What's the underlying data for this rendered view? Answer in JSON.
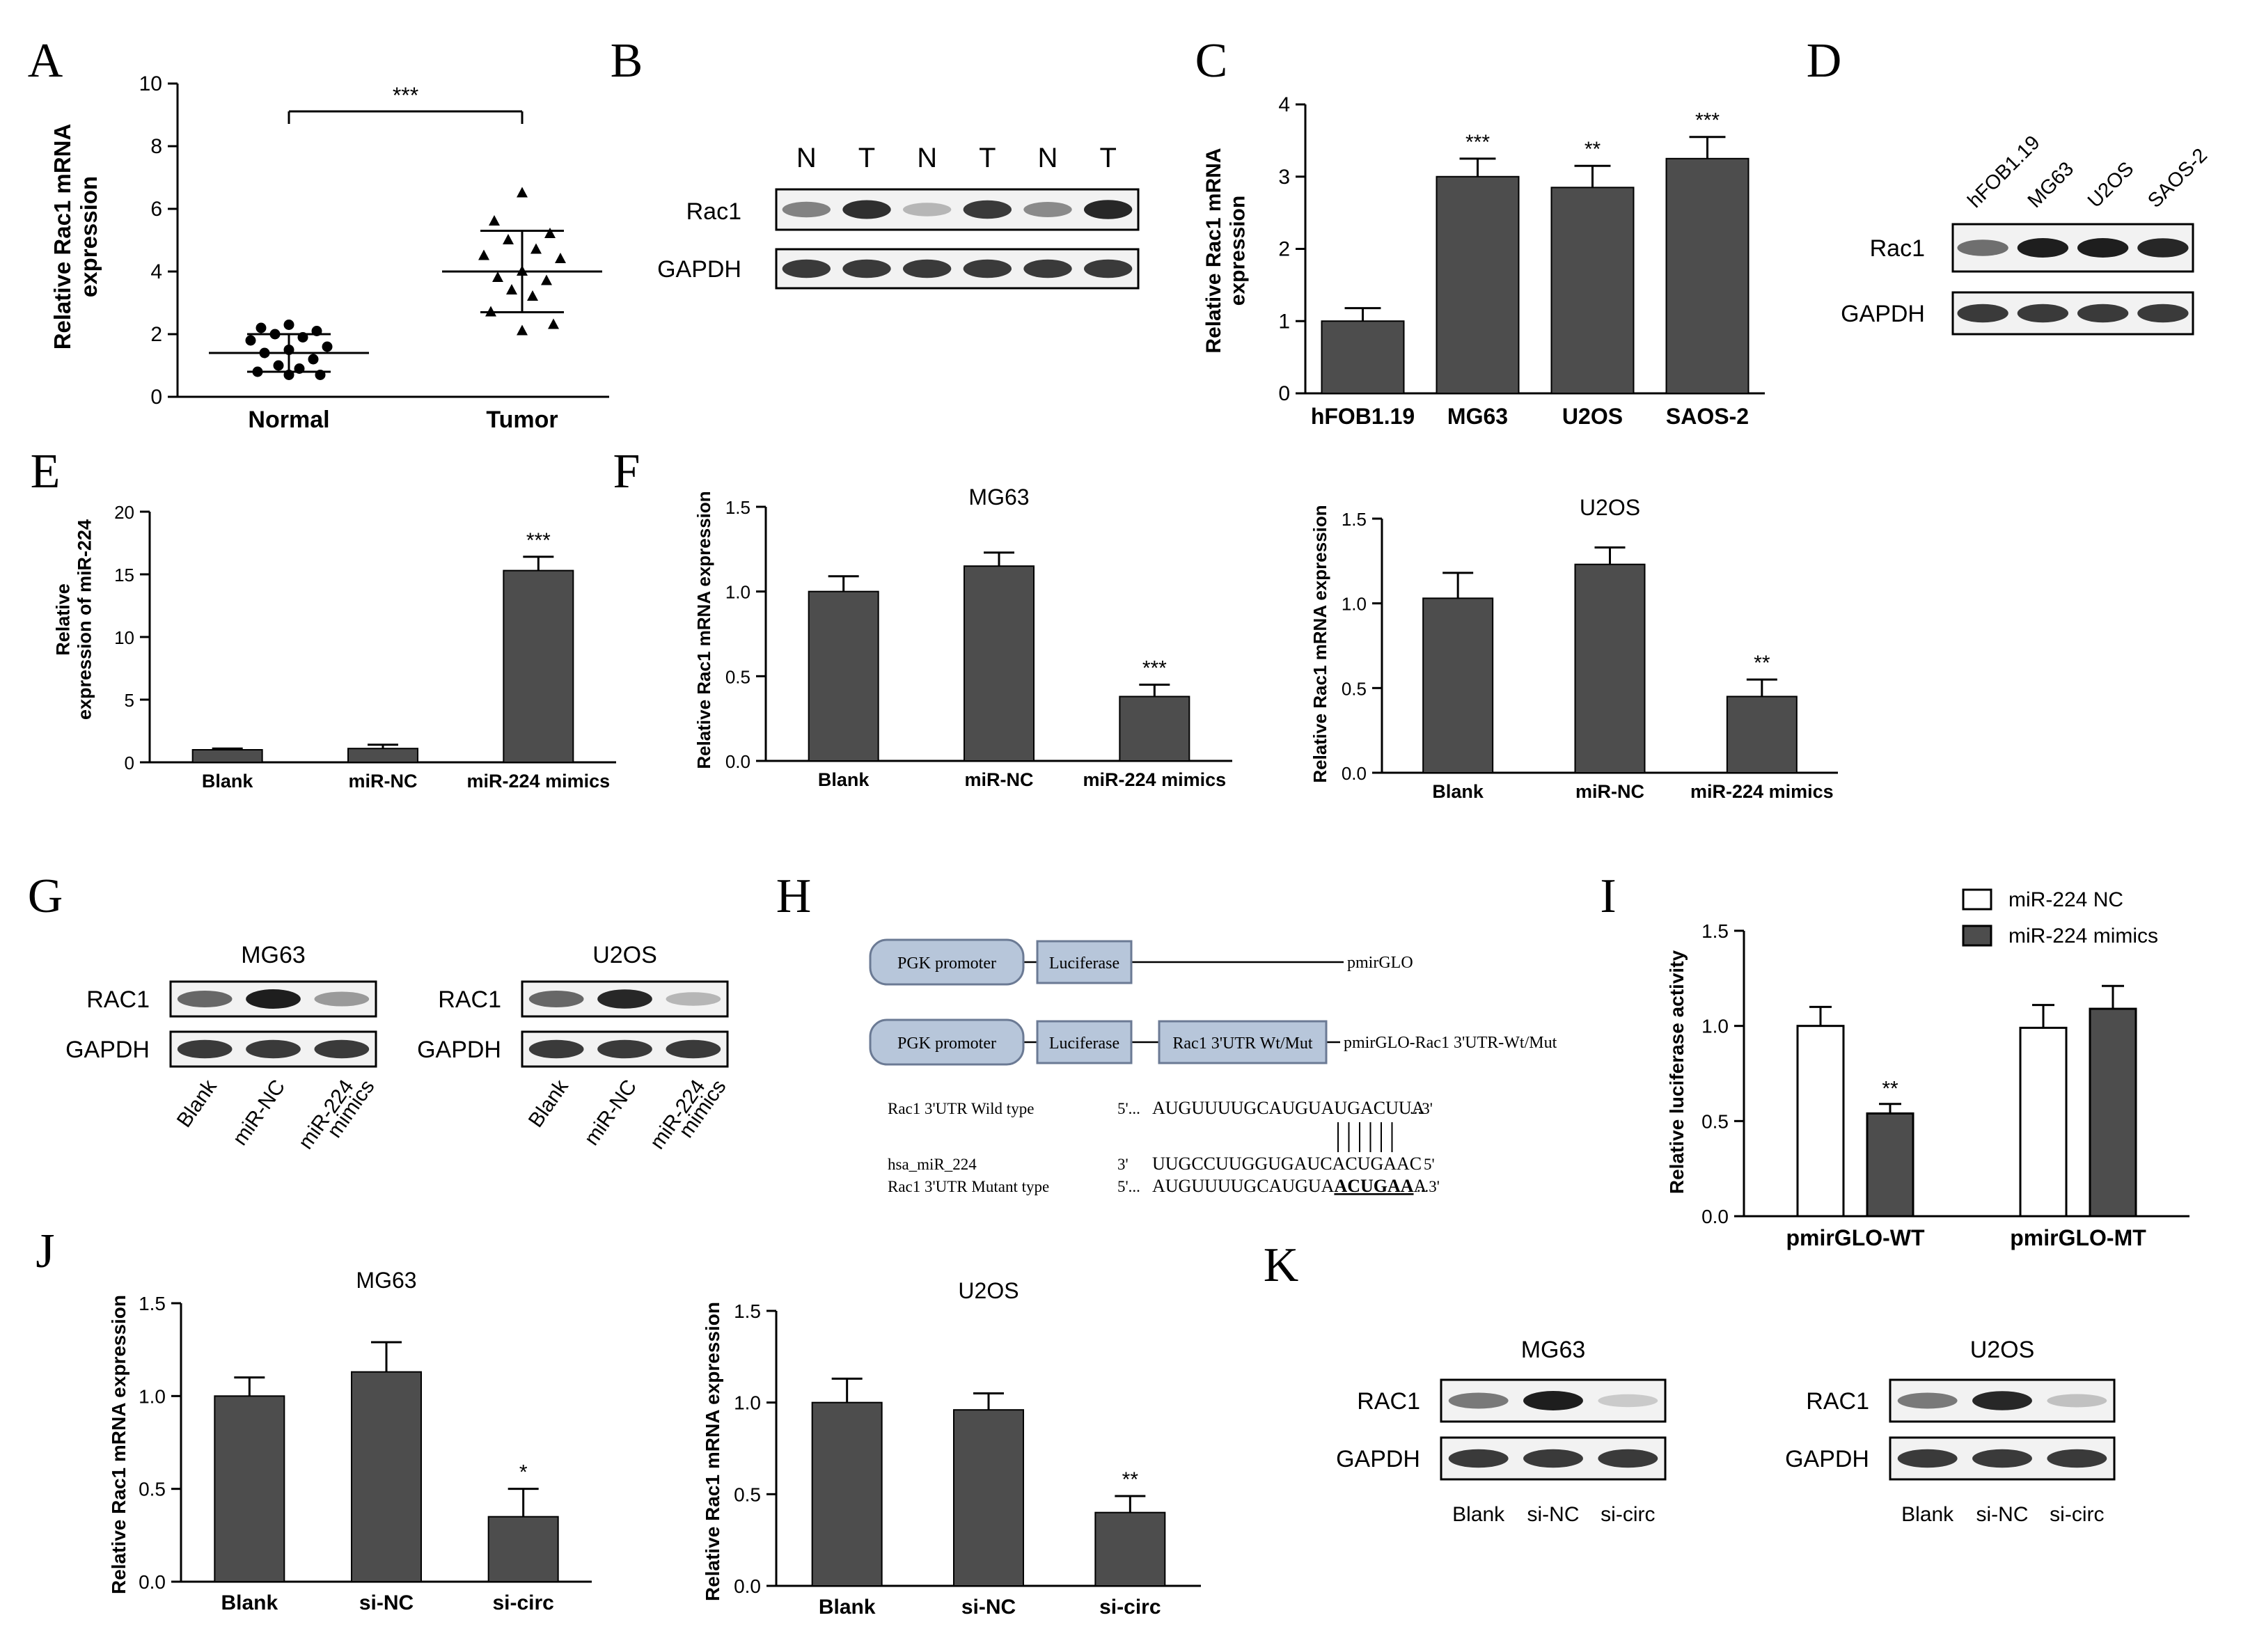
{
  "colors": {
    "bar": "#4d4d4d",
    "axis": "#000000",
    "band": "#1e1e1e",
    "blot_bg": "#f2f2f2",
    "construct_fill": "#b7c6da",
    "construct_stroke": "#6b7a94"
  },
  "chart_data": [
    {
      "panel": "A",
      "type": "scatter",
      "categories": [
        "Normal",
        "Tumor"
      ],
      "ylabel": "Relative Rac1 mRNA expression",
      "ylim": [
        0,
        10
      ],
      "yticks": [
        0,
        2,
        4,
        6,
        8,
        10
      ],
      "series": [
        {
          "points": [
            2.3,
            2.2,
            2.1,
            2.0,
            1.9,
            1.8,
            1.6,
            1.5,
            1.4,
            1.2,
            1.0,
            0.9,
            0.8,
            0.7,
            0.7
          ],
          "mean": 1.4,
          "sd": 0.6,
          "marker": "circle"
        },
        {
          "points": [
            6.5,
            5.6,
            5.2,
            5.0,
            4.7,
            4.5,
            4.4,
            4.0,
            3.8,
            3.7,
            3.4,
            3.2,
            2.7,
            2.3,
            2.1
          ],
          "mean": 4.0,
          "sd": 1.3,
          "marker": "triangle"
        }
      ],
      "annotation": "***"
    },
    {
      "panel": "C",
      "type": "bar",
      "categories": [
        "hFOB1.19",
        "MG63",
        "U2OS",
        "SAOS-2"
      ],
      "values": [
        1.0,
        3.0,
        2.85,
        3.25
      ],
      "errors": [
        0.18,
        0.25,
        0.3,
        0.3
      ],
      "stars": [
        "",
        "***",
        "**",
        "***"
      ],
      "ylabel": "Relative Rac1 mRNA expression",
      "ylim": [
        0,
        4
      ],
      "yticks": [
        0,
        1,
        2,
        3,
        4
      ]
    },
    {
      "panel": "E",
      "type": "bar",
      "categories": [
        "Blank",
        "miR-NC",
        "miR-224 mimics"
      ],
      "values": [
        1.0,
        1.1,
        15.3
      ],
      "errors": [
        0.1,
        0.3,
        1.1
      ],
      "stars": [
        "",
        "",
        "***"
      ],
      "ylabel": "Relative expression of miR-224",
      "ylim": [
        0,
        20
      ],
      "yticks": [
        0,
        5,
        10,
        15,
        20
      ]
    },
    {
      "panel": "F1",
      "type": "bar",
      "title": "MG63",
      "categories": [
        "Blank",
        "miR-NC",
        "miR-224 mimics"
      ],
      "values": [
        1.0,
        1.15,
        0.38
      ],
      "errors": [
        0.09,
        0.08,
        0.07
      ],
      "stars": [
        "",
        "",
        "***"
      ],
      "ylabel": "Relative Rac1 mRNA expression",
      "ylim": [
        0,
        1.5
      ],
      "yticks": [
        0.0,
        0.5,
        1.0,
        1.5
      ]
    },
    {
      "panel": "F2",
      "type": "bar",
      "title": "U2OS",
      "categories": [
        "Blank",
        "miR-NC",
        "miR-224 mimics"
      ],
      "values": [
        1.03,
        1.23,
        0.45
      ],
      "errors": [
        0.15,
        0.1,
        0.1
      ],
      "stars": [
        "",
        "",
        "**"
      ],
      "ylabel": "Relative Rac1 mRNA expression",
      "ylim": [
        0,
        1.5
      ],
      "yticks": [
        0.0,
        0.5,
        1.0,
        1.5
      ]
    },
    {
      "panel": "I",
      "type": "bar",
      "categories": [
        "pmirGLO-WT",
        "pmirGLO-MT"
      ],
      "series": [
        {
          "name": "miR-224 NC",
          "values": [
            1.0,
            0.99
          ],
          "errors": [
            0.1,
            0.12
          ],
          "fill": "#ffffff"
        },
        {
          "name": "miR-224 mimics",
          "values": [
            0.54,
            1.09
          ],
          "errors": [
            0.05,
            0.12
          ],
          "fill": "#4d4d4d"
        }
      ],
      "stars": [
        "**",
        ""
      ],
      "ylabel": "Relative luciferase activity",
      "ylim": [
        0,
        1.5
      ],
      "yticks": [
        0.0,
        0.5,
        1.0,
        1.5
      ],
      "legend": "top-right"
    },
    {
      "panel": "J1",
      "type": "bar",
      "title": "MG63",
      "categories": [
        "Blank",
        "si-NC",
        "si-circ"
      ],
      "values": [
        1.0,
        1.13,
        0.35
      ],
      "errors": [
        0.1,
        0.16,
        0.15
      ],
      "stars": [
        "",
        "",
        "*"
      ],
      "ylabel": "Relative Rac1 mRNA expression",
      "ylim": [
        0,
        1.5
      ],
      "yticks": [
        0.0,
        0.5,
        1.0,
        1.5
      ]
    },
    {
      "panel": "J2",
      "type": "bar",
      "title": "U2OS",
      "categories": [
        "Blank",
        "si-NC",
        "si-circ"
      ],
      "values": [
        1.0,
        0.96,
        0.4
      ],
      "errors": [
        0.13,
        0.09,
        0.09
      ],
      "stars": [
        "",
        "",
        "**"
      ],
      "ylabel": "Relative Rac1 mRNA expression",
      "ylim": [
        0,
        1.5
      ],
      "yticks": [
        0.0,
        0.5,
        1.0,
        1.5
      ]
    }
  ],
  "panels": {
    "labels": [
      "A",
      "B",
      "C",
      "D",
      "E",
      "F",
      "G",
      "H",
      "I",
      "J",
      "K"
    ],
    "B": {
      "lanes": [
        "N",
        "T",
        "N",
        "T",
        "N",
        "T"
      ],
      "rows": [
        "Rac1",
        "GAPDH"
      ],
      "rac1": [
        0.45,
        0.9,
        0.15,
        0.85,
        0.4,
        0.95
      ],
      "gapdh": [
        0.85,
        0.85,
        0.85,
        0.85,
        0.85,
        0.85
      ]
    },
    "D": {
      "lanes": [
        "hFOB1.19",
        "MG63",
        "U2OS",
        "SAOS-2"
      ],
      "rows": [
        "Rac1",
        "GAPDH"
      ],
      "rac1": [
        0.55,
        1.0,
        1.0,
        0.95
      ],
      "gapdh": [
        0.85,
        0.85,
        0.85,
        0.85
      ]
    },
    "G": {
      "blots": [
        {
          "title": "MG63",
          "rac1": [
            0.6,
            1.0,
            0.3
          ],
          "gapdh": [
            0.85,
            0.85,
            0.85
          ]
        },
        {
          "title": "U2OS",
          "rac1": [
            0.6,
            0.95,
            0.15
          ],
          "gapdh": [
            0.85,
            0.85,
            0.85
          ]
        }
      ],
      "rows": [
        "RAC1",
        "GAPDH"
      ],
      "lanes": [
        "Blank",
        "miR-NC",
        [
          "miR-224",
          "mimics"
        ]
      ]
    },
    "H": {
      "row1": {
        "promoter": "PGK promoter",
        "luc": "Luciferase",
        "label": "pmirGLO"
      },
      "row2": {
        "promoter": "PGK promoter",
        "luc": "Luciferase",
        "utr": "Rac1 3'UTR Wt/Mut",
        "label": "pmirGLO-Rac1 3'UTR-Wt/Mut"
      },
      "seq": [
        {
          "name": "Rac1 3'UTR Wild type",
          "end5": "5'...",
          "seq": "AUGUUUUGCAUGUAUGACUUA",
          "end3": "...3'"
        },
        {
          "name": "hsa_miR_224",
          "end5": "3'",
          "seq": "UUGCCUUGGUGAUCACUGAAC",
          "end3": "5'"
        },
        {
          "name": "Rac1 3'UTR Mutant type",
          "end5": "5'...",
          "seq_pre": "AUGUUUUGCAUGUA",
          "seq_mut": "ACUGAA",
          "seq_post": "A",
          "end3": "...3'"
        }
      ]
    },
    "K": {
      "blots": [
        {
          "title": "MG63",
          "rac1": [
            0.5,
            1.0,
            0.05
          ],
          "gapdh": [
            0.85,
            0.85,
            0.85
          ]
        },
        {
          "title": "U2OS",
          "rac1": [
            0.5,
            0.95,
            0.1
          ],
          "gapdh": [
            0.85,
            0.85,
            0.85
          ]
        }
      ],
      "rows": [
        "RAC1",
        "GAPDH"
      ],
      "lanes": [
        "Blank",
        "si-NC",
        "si-circ"
      ]
    }
  }
}
